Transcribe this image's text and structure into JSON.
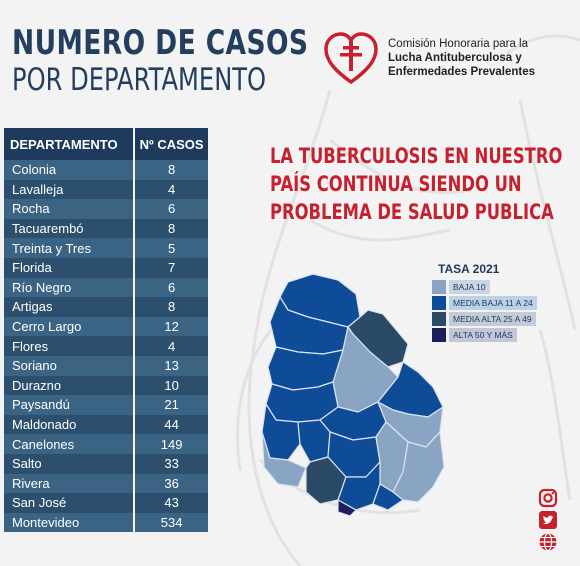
{
  "title": {
    "line1": "NUMERO DE CASOS",
    "line2": "POR DEPARTAMENTO"
  },
  "organization": {
    "line1": "Comisión Honoraria para la",
    "line2": "Lucha Antituberculosa y",
    "line3": "Enfermedades Prevalentes",
    "logo_icon": "lorraine-cross-heart-icon",
    "logo_color": "#c5212f"
  },
  "table": {
    "headers": [
      "DEPARTAMENTO",
      "Nº CASOS"
    ],
    "rows": [
      {
        "department": "Colonia",
        "cases": "8"
      },
      {
        "department": "Lavalleja",
        "cases": "4"
      },
      {
        "department": "Rocha",
        "cases": "6"
      },
      {
        "department": "Tacuarembó",
        "cases": "8"
      },
      {
        "department": "Treinta y Tres",
        "cases": "5"
      },
      {
        "department": "Florida",
        "cases": "7"
      },
      {
        "department": "Río Negro",
        "cases": "6"
      },
      {
        "department": "Artigas",
        "cases": "8"
      },
      {
        "department": "Cerro Largo",
        "cases": "12"
      },
      {
        "department": "Flores",
        "cases": "4"
      },
      {
        "department": "Soriano",
        "cases": "13"
      },
      {
        "department": "Durazno",
        "cases": "10"
      },
      {
        "department": "Paysandú",
        "cases": "21"
      },
      {
        "department": "Maldonado",
        "cases": "44"
      },
      {
        "department": "Canelones",
        "cases": "149"
      },
      {
        "department": "Salto",
        "cases": "33"
      },
      {
        "department": "Rivera",
        "cases": "36"
      },
      {
        "department": "San José",
        "cases": "43"
      },
      {
        "department": "Montevideo",
        "cases": "534"
      }
    ]
  },
  "headline": {
    "line1": "LA TUBERCULOSIS EN NUESTRO",
    "line2": "PAÍS CONTINUA SIENDO UN",
    "line3": "PROBLEMA DE SALUD PUBLICA"
  },
  "legend": {
    "title": "TASA 2021",
    "items": [
      {
        "label": "BAJA  10",
        "color": "#8aa5c4"
      },
      {
        "label": "MEDIA BAJA  11 A 24",
        "color": "#0f4c97"
      },
      {
        "label": "MEDIA ALTA  25 A 49",
        "color": "#2a4a66"
      },
      {
        "label": "ALTA  50 Y MÁS",
        "color": "#1d1f5c"
      }
    ]
  },
  "colors": {
    "title": "#243f5e",
    "headline": "#c5212f",
    "table_header": "#1e3a5c",
    "row_light": "#3a6384",
    "row_dark": "#2c4f6d"
  },
  "social": {
    "icons": [
      "instagram-icon",
      "twitter-icon",
      "globe-icon"
    ],
    "color": "#c5212f"
  }
}
